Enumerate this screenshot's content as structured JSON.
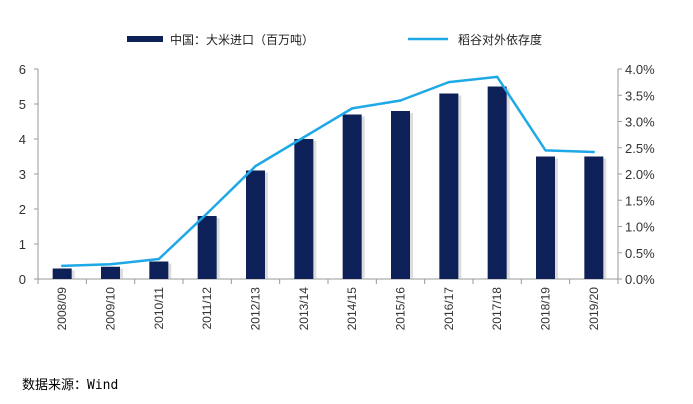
{
  "chart_data": {
    "type": "bar+line",
    "categories": [
      "2008/09",
      "2009/10",
      "2010/11",
      "2011/12",
      "2012/13",
      "2013/14",
      "2014/15",
      "2015/16",
      "2016/17",
      "2017/18",
      "2018/19",
      "2019/20"
    ],
    "series": [
      {
        "name": "中国：大米进口（百万吨）",
        "type": "bar",
        "axis": "left",
        "values": [
          0.3,
          0.35,
          0.5,
          1.8,
          3.1,
          4.0,
          4.7,
          4.8,
          5.3,
          5.5,
          3.5,
          3.5
        ]
      },
      {
        "name": "稻谷对外依存度",
        "type": "line",
        "axis": "right",
        "values": [
          0.25,
          0.28,
          0.38,
          1.25,
          2.15,
          2.7,
          3.25,
          3.4,
          3.75,
          3.85,
          2.45,
          2.42
        ]
      }
    ],
    "ylim_left": [
      0,
      6
    ],
    "yticks_left": [
      "0",
      "1",
      "2",
      "3",
      "4",
      "5",
      "6"
    ],
    "ylim_right": [
      0,
      4
    ],
    "yticks_right": [
      "0.0%",
      "0.5%",
      "1.0%",
      "1.5%",
      "2.0%",
      "2.5%",
      "3.0%",
      "3.5%",
      "4.0%"
    ],
    "legend_position": "top"
  },
  "source": "数据来源：Wind",
  "colors": {
    "bar": "#0d2057",
    "line": "#1fa8e6",
    "axis": "#999999"
  }
}
